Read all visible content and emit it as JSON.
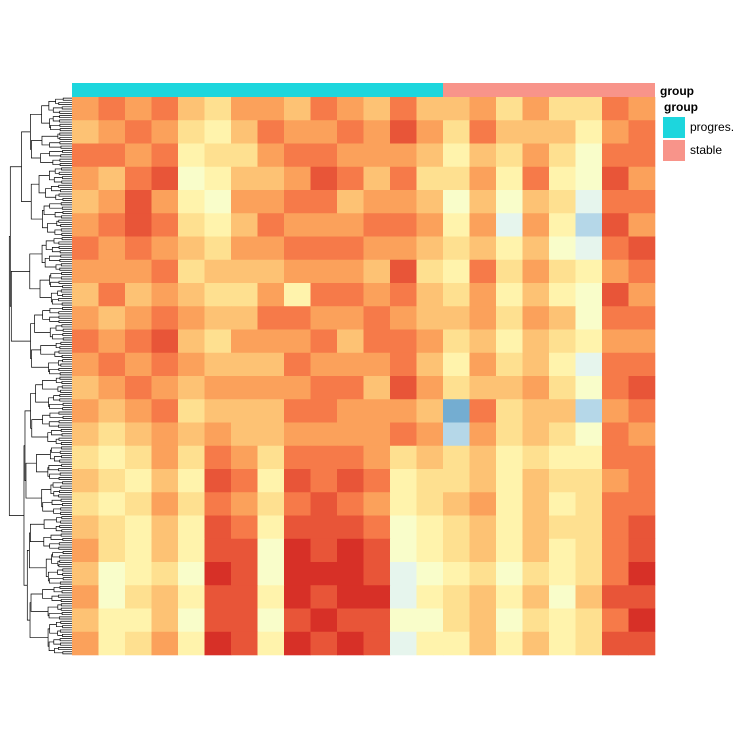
{
  "chart_data": {
    "type": "heatmap",
    "annotation_label": "group",
    "legend_title": "group",
    "groups": [
      {
        "name": "progres.",
        "color": "#1dd6dd",
        "n": 14
      },
      {
        "name": "stable",
        "color": "#f8948a",
        "n": 8
      }
    ],
    "colors": [
      "#74add1",
      "#e0f3f8",
      "#ffffbf",
      "#fee090",
      "#fdae61",
      "#f46d43",
      "#d73027"
    ],
    "matrix": [
      [
        7,
        8,
        7,
        8,
        6,
        5,
        7,
        7,
        6,
        8,
        7,
        6,
        8,
        6,
        6,
        7,
        5,
        7,
        5,
        5,
        8,
        7
      ],
      [
        6,
        7,
        8,
        7,
        5,
        4,
        6,
        8,
        7,
        7,
        8,
        7,
        9,
        7,
        5,
        8,
        6,
        6,
        6,
        4,
        7,
        8
      ],
      [
        8,
        8,
        7,
        8,
        4,
        5,
        5,
        7,
        8,
        8,
        7,
        7,
        7,
        6,
        4,
        6,
        5,
        7,
        5,
        3,
        8,
        8
      ],
      [
        7,
        6,
        8,
        9,
        3,
        4,
        6,
        6,
        7,
        9,
        8,
        6,
        8,
        5,
        5,
        7,
        4,
        8,
        4,
        3,
        9,
        7
      ],
      [
        6,
        7,
        9,
        7,
        4,
        3,
        7,
        7,
        8,
        8,
        6,
        7,
        7,
        6,
        3,
        6,
        3,
        6,
        5,
        2,
        8,
        8
      ],
      [
        7,
        8,
        9,
        8,
        5,
        4,
        6,
        8,
        7,
        7,
        7,
        8,
        8,
        7,
        4,
        7,
        2,
        7,
        4,
        1,
        9,
        7
      ],
      [
        8,
        7,
        8,
        7,
        6,
        5,
        7,
        7,
        8,
        8,
        8,
        7,
        7,
        6,
        5,
        6,
        4,
        6,
        3,
        2,
        8,
        9
      ],
      [
        7,
        7,
        7,
        8,
        5,
        6,
        6,
        6,
        7,
        7,
        7,
        6,
        9,
        5,
        4,
        8,
        5,
        7,
        5,
        4,
        7,
        8
      ],
      [
        6,
        8,
        6,
        7,
        6,
        5,
        5,
        7,
        4,
        8,
        8,
        7,
        8,
        6,
        5,
        7,
        4,
        6,
        4,
        3,
        9,
        7
      ],
      [
        7,
        6,
        7,
        8,
        7,
        6,
        6,
        8,
        8,
        7,
        7,
        8,
        7,
        6,
        6,
        7,
        5,
        7,
        6,
        3,
        8,
        8
      ],
      [
        8,
        7,
        8,
        9,
        6,
        5,
        7,
        7,
        7,
        8,
        6,
        8,
        8,
        7,
        5,
        6,
        4,
        6,
        5,
        4,
        7,
        7
      ],
      [
        7,
        8,
        7,
        8,
        7,
        6,
        6,
        6,
        8,
        7,
        7,
        7,
        8,
        6,
        4,
        7,
        5,
        6,
        4,
        2,
        8,
        8
      ],
      [
        6,
        7,
        8,
        7,
        6,
        7,
        7,
        7,
        7,
        8,
        8,
        6,
        9,
        7,
        5,
        6,
        6,
        7,
        5,
        3,
        8,
        9
      ],
      [
        7,
        6,
        7,
        8,
        5,
        6,
        6,
        6,
        8,
        8,
        7,
        7,
        7,
        6,
        0,
        8,
        5,
        6,
        6,
        1,
        7,
        8
      ],
      [
        6,
        5,
        6,
        7,
        6,
        7,
        6,
        6,
        7,
        7,
        7,
        7,
        8,
        7,
        1,
        7,
        5,
        6,
        5,
        3,
        8,
        7
      ],
      [
        5,
        4,
        5,
        7,
        5,
        8,
        7,
        5,
        8,
        8,
        8,
        7,
        5,
        6,
        5,
        6,
        4,
        5,
        4,
        4,
        8,
        8
      ],
      [
        6,
        5,
        4,
        6,
        4,
        9,
        8,
        4,
        9,
        8,
        9,
        8,
        4,
        5,
        5,
        6,
        4,
        6,
        5,
        5,
        7,
        8
      ],
      [
        5,
        4,
        5,
        7,
        5,
        8,
        7,
        5,
        8,
        9,
        8,
        7,
        4,
        5,
        6,
        7,
        4,
        6,
        4,
        5,
        8,
        8
      ],
      [
        6,
        5,
        4,
        6,
        4,
        9,
        8,
        4,
        9,
        9,
        9,
        8,
        3,
        4,
        5,
        6,
        4,
        6,
        5,
        5,
        8,
        9
      ],
      [
        7,
        5,
        4,
        6,
        4,
        9,
        9,
        3,
        10,
        9,
        10,
        9,
        3,
        4,
        5,
        6,
        4,
        6,
        4,
        5,
        8,
        9
      ],
      [
        6,
        3,
        4,
        5,
        3,
        10,
        9,
        3,
        10,
        10,
        10,
        9,
        2,
        3,
        4,
        5,
        3,
        5,
        4,
        5,
        8,
        10
      ],
      [
        7,
        3,
        5,
        6,
        4,
        9,
        9,
        4,
        10,
        9,
        10,
        10,
        2,
        4,
        5,
        6,
        4,
        6,
        3,
        6,
        9,
        9
      ],
      [
        6,
        4,
        4,
        6,
        3,
        9,
        9,
        3,
        9,
        10,
        9,
        9,
        3,
        3,
        5,
        6,
        3,
        5,
        4,
        5,
        8,
        10
      ],
      [
        7,
        4,
        5,
        7,
        4,
        10,
        9,
        4,
        10,
        9,
        10,
        9,
        2,
        4,
        4,
        6,
        4,
        6,
        4,
        5,
        9,
        9
      ]
    ]
  }
}
